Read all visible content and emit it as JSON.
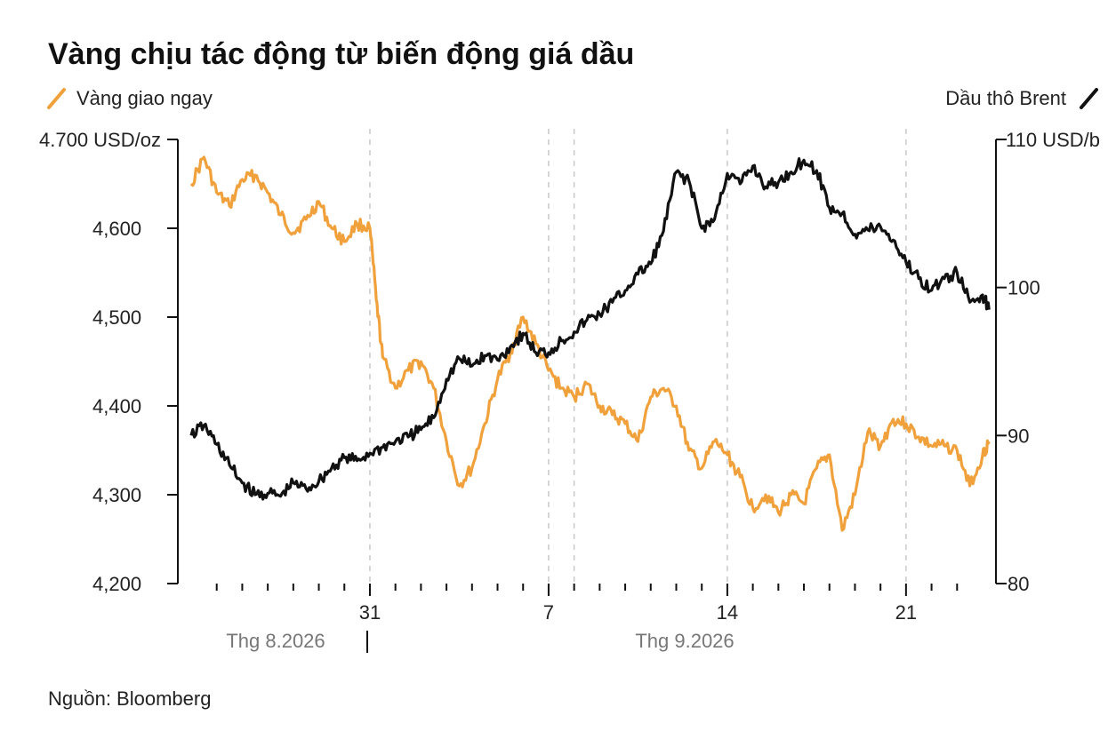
{
  "chart_data": {
    "type": "line",
    "title": "Vàng chịu tác động từ biến động giá dầu",
    "source": "Nguồn: Bloomberg",
    "x_axis": {
      "range": [
        "2026-08-24",
        "2026-09-24"
      ],
      "ticks": [
        {
          "date": "2026-08-31",
          "label": "31"
        },
        {
          "date": "2026-09-07",
          "label": "7"
        },
        {
          "date": "2026-09-14",
          "label": "14"
        },
        {
          "date": "2026-09-21",
          "label": "21"
        }
      ],
      "months": [
        {
          "label": "Thg 8.2026"
        },
        {
          "label": "Thg 9.2026"
        }
      ],
      "minor_tick_dates": [
        "2026-08-25",
        "2026-08-26",
        "2026-08-27",
        "2026-08-28",
        "2026-08-29",
        "2026-08-30",
        "2026-09-01",
        "2026-09-02",
        "2026-09-03",
        "2026-09-04",
        "2026-09-05",
        "2026-09-06",
        "2026-09-08",
        "2026-09-09",
        "2026-09-10",
        "2026-09-11",
        "2026-09-12",
        "2026-09-13",
        "2026-09-15",
        "2026-09-16",
        "2026-09-17",
        "2026-09-18",
        "2026-09-19",
        "2026-09-20",
        "2026-09-22",
        "2026-09-23"
      ],
      "dashed_gridlines": [
        "2026-08-31",
        "2026-09-07",
        "2026-09-08",
        "2026-09-14",
        "2026-09-21"
      ]
    },
    "y_left": {
      "range": [
        4200,
        4700
      ],
      "ticks": [
        {
          "value": 4700,
          "label": "4.700 USD/oz"
        },
        {
          "value": 4600,
          "label": "4,600"
        },
        {
          "value": 4500,
          "label": "4,500"
        },
        {
          "value": 4400,
          "label": "4,400"
        },
        {
          "value": 4300,
          "label": "4,300"
        },
        {
          "value": 4200,
          "label": "4,200"
        }
      ]
    },
    "y_right": {
      "range": [
        80,
        110
      ],
      "ticks": [
        {
          "value": 110,
          "label": "110 USD/b"
        },
        {
          "value": 100,
          "label": "100"
        },
        {
          "value": 90,
          "label": "90"
        },
        {
          "value": 80,
          "label": "80"
        }
      ]
    },
    "series": [
      {
        "name": "Vàng giao ngay",
        "axis": "left",
        "color": "#F0A13C",
        "points": [
          [
            "2026-08-24",
            4650
          ],
          [
            "2026-08-24T12:00",
            4680
          ],
          [
            "2026-08-25",
            4640
          ],
          [
            "2026-08-25T12:00",
            4625
          ],
          [
            "2026-08-26",
            4655
          ],
          [
            "2026-08-26T12:00",
            4660
          ],
          [
            "2026-08-27",
            4640
          ],
          [
            "2026-08-27T12:00",
            4615
          ],
          [
            "2026-08-28",
            4595
          ],
          [
            "2026-08-28T12:00",
            4610
          ],
          [
            "2026-08-29",
            4630
          ],
          [
            "2026-08-29T12:00",
            4600
          ],
          [
            "2026-08-30",
            4585
          ],
          [
            "2026-08-30T12:00",
            4605
          ],
          [
            "2026-08-31",
            4600
          ],
          [
            "2026-08-31T06:00",
            4520
          ],
          [
            "2026-08-31T12:00",
            4455
          ],
          [
            "2026-09-01",
            4420
          ],
          [
            "2026-09-01T12:00",
            4440
          ],
          [
            "2026-09-02",
            4450
          ],
          [
            "2026-09-02T12:00",
            4420
          ],
          [
            "2026-09-03",
            4360
          ],
          [
            "2026-09-03T12:00",
            4310
          ],
          [
            "2026-09-04",
            4330
          ],
          [
            "2026-09-04T12:00",
            4380
          ],
          [
            "2026-09-05",
            4430
          ],
          [
            "2026-09-05T12:00",
            4460
          ],
          [
            "2026-09-06",
            4500
          ],
          [
            "2026-09-06T12:00",
            4470
          ],
          [
            "2026-09-07",
            4440
          ],
          [
            "2026-09-07T12:00",
            4420
          ],
          [
            "2026-09-08",
            4410
          ],
          [
            "2026-09-08T12:00",
            4425
          ],
          [
            "2026-09-09",
            4400
          ],
          [
            "2026-09-09T12:00",
            4390
          ],
          [
            "2026-09-10",
            4380
          ],
          [
            "2026-09-10T12:00",
            4360
          ],
          [
            "2026-09-11",
            4410
          ],
          [
            "2026-09-11T12:00",
            4420
          ],
          [
            "2026-09-12",
            4400
          ],
          [
            "2026-09-12T12:00",
            4350
          ],
          [
            "2026-09-13",
            4330
          ],
          [
            "2026-09-13T12:00",
            4360
          ],
          [
            "2026-09-14",
            4345
          ],
          [
            "2026-09-14T12:00",
            4320
          ],
          [
            "2026-09-15",
            4285
          ],
          [
            "2026-09-15T12:00",
            4300
          ],
          [
            "2026-09-16",
            4280
          ],
          [
            "2026-09-16T12:00",
            4300
          ],
          [
            "2026-09-17",
            4290
          ],
          [
            "2026-09-17T12:00",
            4330
          ],
          [
            "2026-09-18",
            4345
          ],
          [
            "2026-09-18T12:00",
            4260
          ],
          [
            "2026-09-19",
            4300
          ],
          [
            "2026-09-19T12:00",
            4370
          ],
          [
            "2026-09-20",
            4355
          ],
          [
            "2026-09-20T12:00",
            4385
          ],
          [
            "2026-09-21",
            4380
          ],
          [
            "2026-09-21T12:00",
            4365
          ],
          [
            "2026-09-22",
            4355
          ],
          [
            "2026-09-22T12:00",
            4355
          ],
          [
            "2026-09-23",
            4350
          ],
          [
            "2026-09-23T12:00",
            4310
          ],
          [
            "2026-09-24",
            4345
          ],
          [
            "2026-09-24T06:00",
            4360
          ]
        ]
      },
      {
        "name": "Dầu thô Brent",
        "axis": "right",
        "color": "#111111",
        "points": [
          [
            "2026-08-24",
            90.0
          ],
          [
            "2026-08-24T12:00",
            90.7
          ],
          [
            "2026-08-25",
            89.4
          ],
          [
            "2026-08-25T12:00",
            88.0
          ],
          [
            "2026-08-26",
            86.8
          ],
          [
            "2026-08-26T12:00",
            86.0
          ],
          [
            "2026-08-27",
            86.1
          ],
          [
            "2026-08-27T12:00",
            85.9
          ],
          [
            "2026-08-28",
            86.8
          ],
          [
            "2026-08-28T12:00",
            86.4
          ],
          [
            "2026-08-29",
            86.9
          ],
          [
            "2026-08-29T12:00",
            87.8
          ],
          [
            "2026-08-30",
            88.5
          ],
          [
            "2026-08-30T12:00",
            88.3
          ],
          [
            "2026-08-31",
            88.8
          ],
          [
            "2026-08-31T12:00",
            89.2
          ],
          [
            "2026-09-01",
            89.6
          ],
          [
            "2026-09-01T12:00",
            89.9
          ],
          [
            "2026-09-02",
            90.4
          ],
          [
            "2026-09-02T12:00",
            91.2
          ],
          [
            "2026-09-03",
            93.8
          ],
          [
            "2026-09-03T12:00",
            95.2
          ],
          [
            "2026-09-04",
            94.7
          ],
          [
            "2026-09-04T12:00",
            95.4
          ],
          [
            "2026-09-05",
            95.1
          ],
          [
            "2026-09-05T12:00",
            96.0
          ],
          [
            "2026-09-06",
            96.9
          ],
          [
            "2026-09-06T12:00",
            95.6
          ],
          [
            "2026-09-07",
            95.6
          ],
          [
            "2026-09-07T12:00",
            96.4
          ],
          [
            "2026-09-08",
            97.0
          ],
          [
            "2026-09-08T12:00",
            97.8
          ],
          [
            "2026-09-09",
            98.2
          ],
          [
            "2026-09-09T12:00",
            99.0
          ],
          [
            "2026-09-10",
            99.8
          ],
          [
            "2026-09-10T12:00",
            100.9
          ],
          [
            "2026-09-11",
            101.6
          ],
          [
            "2026-09-11T12:00",
            103.8
          ],
          [
            "2026-09-12",
            107.8
          ],
          [
            "2026-09-12T12:00",
            107.2
          ],
          [
            "2026-09-13",
            104.0
          ],
          [
            "2026-09-13T12:00",
            104.6
          ],
          [
            "2026-09-14",
            107.7
          ],
          [
            "2026-09-14T12:00",
            107.0
          ],
          [
            "2026-09-15",
            108.2
          ],
          [
            "2026-09-15T12:00",
            106.8
          ],
          [
            "2026-09-16",
            107.1
          ],
          [
            "2026-09-16T12:00",
            107.8
          ],
          [
            "2026-09-17",
            108.6
          ],
          [
            "2026-09-17T12:00",
            107.9
          ],
          [
            "2026-09-18",
            105.4
          ],
          [
            "2026-09-18T12:00",
            105.0
          ],
          [
            "2026-09-19",
            103.6
          ],
          [
            "2026-09-19T12:00",
            103.9
          ],
          [
            "2026-09-20",
            104.1
          ],
          [
            "2026-09-20T12:00",
            103.2
          ],
          [
            "2026-09-21",
            101.7
          ],
          [
            "2026-09-21T12:00",
            100.6
          ],
          [
            "2026-09-22",
            99.8
          ],
          [
            "2026-09-22T12:00",
            100.6
          ],
          [
            "2026-09-23",
            101.0
          ],
          [
            "2026-09-23T12:00",
            99.0
          ],
          [
            "2026-09-24",
            99.5
          ],
          [
            "2026-09-24T06:00",
            98.5
          ]
        ]
      }
    ],
    "legend": {
      "left": "Vàng giao ngay",
      "right": "Dầu thô Brent"
    },
    "grid": false
  }
}
